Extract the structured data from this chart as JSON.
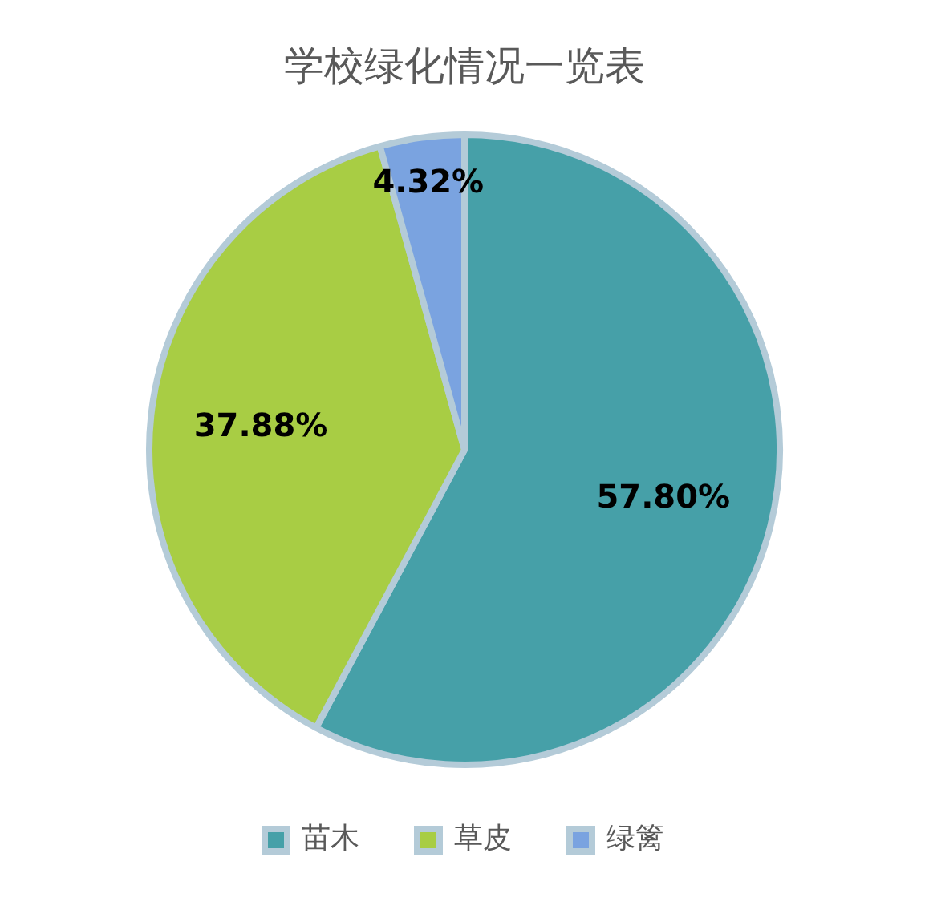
{
  "chart_data": {
    "type": "pie",
    "title": "学校绿化情况一览表",
    "categories": [
      "苗木",
      "草皮",
      "绿篱"
    ],
    "values": [
      57.8,
      37.88,
      4.32
    ],
    "value_labels": [
      "57.80%",
      "37.88%",
      "4.32%"
    ],
    "colors": [
      "#46a0a8",
      "#a8cd44",
      "#7aa3e0"
    ],
    "legend": "bottom"
  }
}
